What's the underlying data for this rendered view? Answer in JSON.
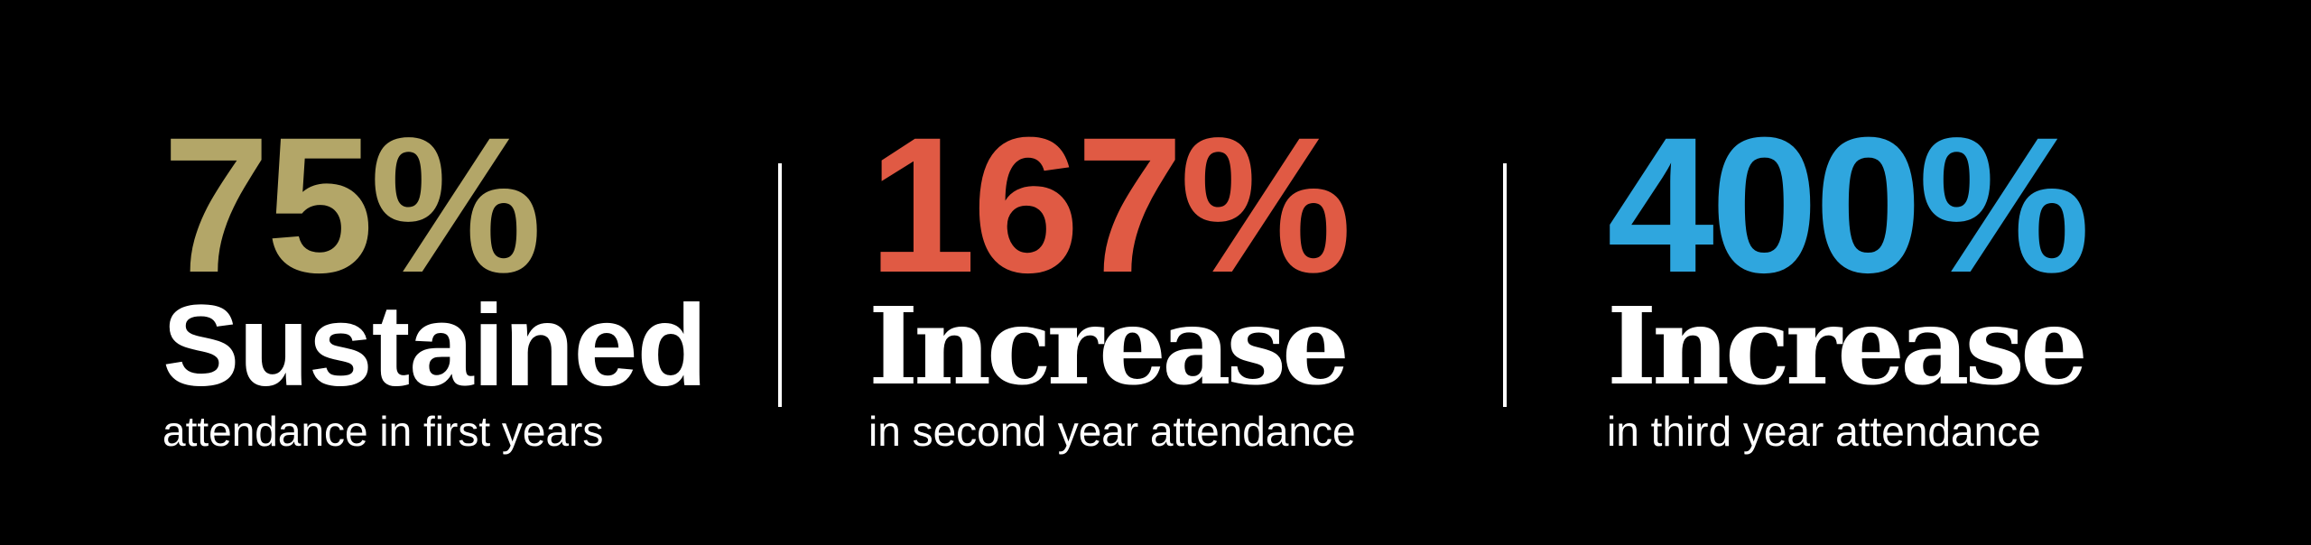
{
  "colors": {
    "background": "#000000",
    "gold": "#b3a668",
    "red": "#e05a44",
    "blue": "#2fa6de",
    "text": "#ffffff"
  },
  "stats": [
    {
      "value": "75%",
      "headline": "Sustained",
      "caption": "attendance in first years"
    },
    {
      "value": "167%",
      "headline": "Increase",
      "caption": "in second year attendance"
    },
    {
      "value": "400%",
      "headline": "Increase",
      "caption": "in third year attendance"
    }
  ]
}
